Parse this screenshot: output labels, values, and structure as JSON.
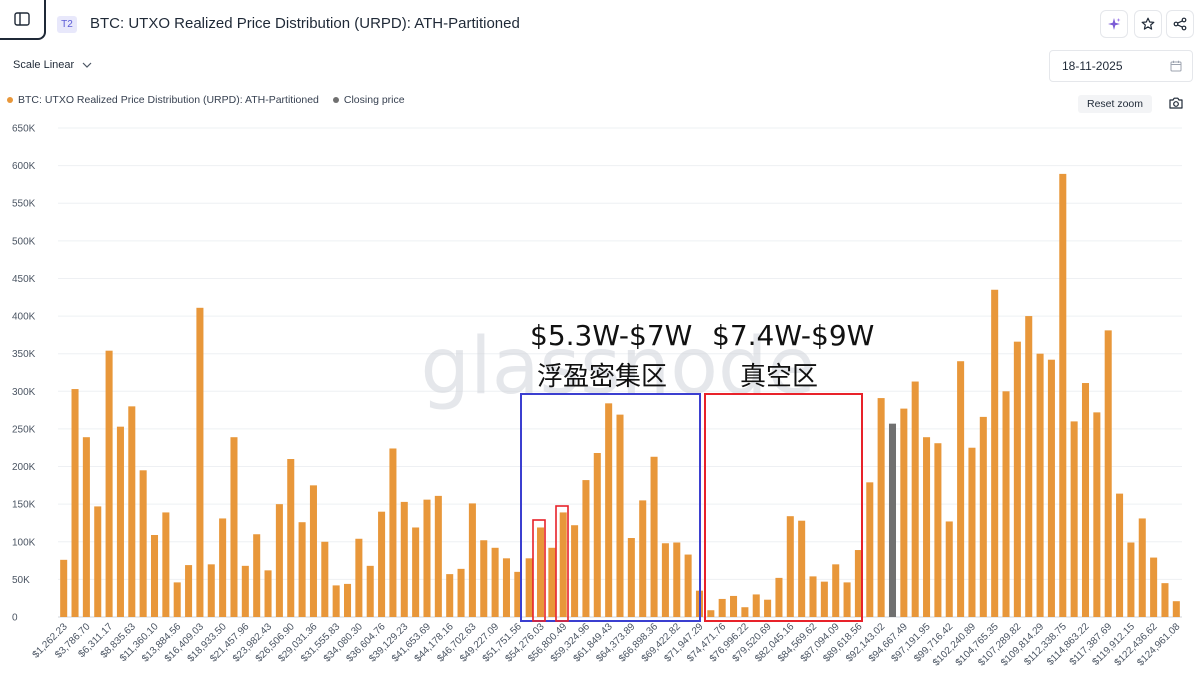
{
  "header": {
    "tier_badge": "T2",
    "title": "BTC: UTXO Realized Price Distribution (URPD): ATH-Partitioned",
    "icons": [
      "sidebar-icon",
      "sparkle-icon",
      "star-icon",
      "share-icon"
    ]
  },
  "controls": {
    "scale_label": "Scale Linear",
    "date_value": "18-11-2025",
    "reset_zoom_label": "Reset zoom"
  },
  "legend": [
    {
      "label": "BTC: UTXO Realized Price Distribution (URPD): ATH-Partitioned",
      "color": "#e8973a"
    },
    {
      "label": "Closing price",
      "color": "#707070"
    }
  ],
  "watermark": "glassnode",
  "annotations": [
    {
      "line1": "$5.3W-$7W",
      "line2": "浮盈密集区",
      "box_color": "#3b3fd0"
    },
    {
      "line1": "$7.4W-$9W",
      "line2": "真空区",
      "box_color": "#e8222a"
    }
  ],
  "chart_data": {
    "type": "bar",
    "title": "BTC: UTXO Realized Price Distribution (URPD): ATH-Partitioned",
    "bar_color": "#e8973a",
    "highlight_color": "#707070",
    "closing_price_index": 73,
    "ylim": [
      0,
      650000
    ],
    "y_ticks": [
      0,
      50000,
      100000,
      150000,
      200000,
      250000,
      300000,
      350000,
      400000,
      450000,
      500000,
      550000,
      600000,
      650000
    ],
    "y_tick_labels": [
      "0",
      "50K",
      "100K",
      "150K",
      "200K",
      "250K",
      "300K",
      "350K",
      "400K",
      "450K",
      "500K",
      "550K",
      "600K",
      "650K"
    ],
    "x_tick_labels": [
      "$1,262.23",
      "$3,786.70",
      "$6,311.17",
      "$8,835.63",
      "$11,360.10",
      "$13,884.56",
      "$16,409.03",
      "$18,933.50",
      "$21,457.96",
      "$23,982.43",
      "$26,506.90",
      "$29,031.36",
      "$31,555.83",
      "$34,080.30",
      "$36,604.76",
      "$39,129.23",
      "$41,653.69",
      "$44,178.16",
      "$46,702.63",
      "$49,227.09",
      "$51,751.56",
      "$54,276.03",
      "$56,800.49",
      "$59,324.96",
      "$61,849.43",
      "$64,373.89",
      "$66,898.36",
      "$69,422.82",
      "$71,947.29",
      "$74,471.76",
      "$76,996.22",
      "$79,520.69",
      "$82,045.16",
      "$84,569.62",
      "$87,094.09",
      "$89,618.56",
      "$92,143.02",
      "$94,667.49",
      "$97,191.95",
      "$99,716.42",
      "$102,240.89",
      "$104,765.35",
      "$107,289.82",
      "$109,814.29",
      "$112,338.75",
      "$114,863.22",
      "$117,387.69",
      "$119,912.15",
      "$122,436.62",
      "$124,961.08"
    ],
    "x_tick_every": 2,
    "values": [
      76000,
      303000,
      239000,
      147000,
      354000,
      253000,
      280000,
      195000,
      109000,
      139000,
      46000,
      69000,
      411000,
      70000,
      131000,
      239000,
      68000,
      110000,
      62000,
      150000,
      210000,
      126000,
      175000,
      100000,
      42000,
      44000,
      104000,
      68000,
      140000,
      224000,
      153000,
      119000,
      156000,
      161000,
      57000,
      64000,
      151000,
      102000,
      92000,
      78000,
      60000,
      78000,
      119000,
      92000,
      139000,
      122000,
      182000,
      218000,
      284000,
      269000,
      105000,
      155000,
      213000,
      98000,
      99000,
      83000,
      35000,
      9000,
      24000,
      28000,
      13000,
      30000,
      23000,
      52000,
      134000,
      128000,
      54000,
      47000,
      70000,
      46000,
      89000,
      179000,
      291000,
      257000,
      277000,
      313000,
      239000,
      231000,
      127000,
      340000,
      225000,
      266000,
      435000,
      300000,
      366000,
      400000,
      350000,
      342000,
      589000,
      260000,
      311000,
      272000,
      381000,
      164000,
      99000,
      131000,
      79000,
      45000,
      21000
    ]
  }
}
